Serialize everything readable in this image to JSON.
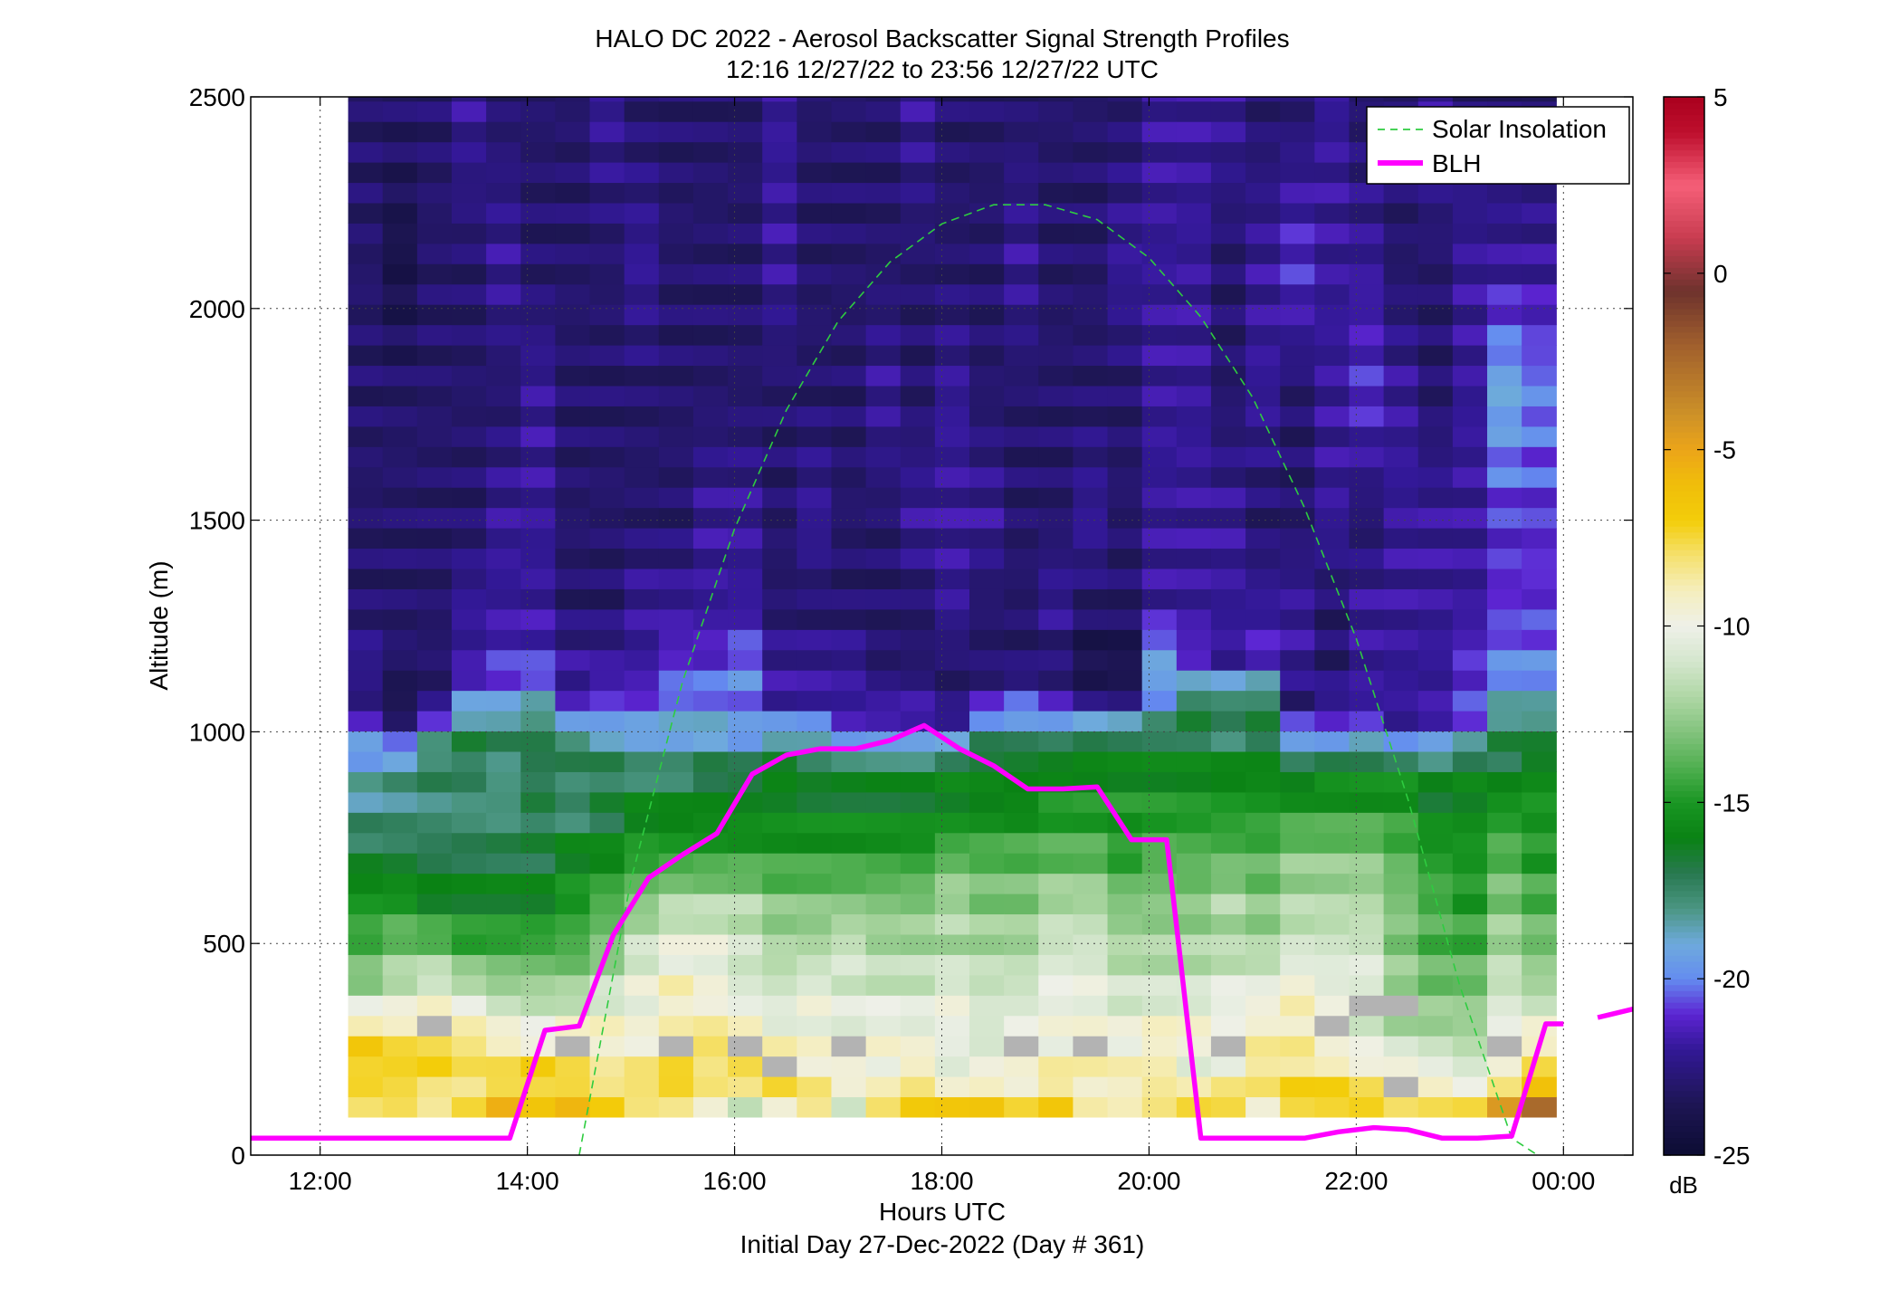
{
  "chart_data": {
    "type": "heatmap",
    "title": "HALO DC 2022 - Aerosol Backscatter Signal Strength Profiles",
    "subtitle": "12:16 12/27/22 to 23:56 12/27/22  UTC",
    "xlabel": "Hours UTC",
    "xlabel2": "Initial Day 27-Dec-2022 (Day # 361)",
    "ylabel": "Altitude (m)",
    "xlim": [
      11.33,
      24.67
    ],
    "ylim": [
      0,
      2500
    ],
    "x_ticks": [
      {
        "value": 12,
        "label": "12:00"
      },
      {
        "value": 14,
        "label": "14:00"
      },
      {
        "value": 16,
        "label": "16:00"
      },
      {
        "value": 18,
        "label": "18:00"
      },
      {
        "value": 20,
        "label": "20:00"
      },
      {
        "value": 22,
        "label": "22:00"
      },
      {
        "value": 24,
        "label": "00:00"
      }
    ],
    "y_ticks": [
      {
        "value": 0,
        "label": "0"
      },
      {
        "value": 500,
        "label": "500"
      },
      {
        "value": 1000,
        "label": "1000"
      },
      {
        "value": 1500,
        "label": "1500"
      },
      {
        "value": 2000,
        "label": "2000"
      },
      {
        "value": 2500,
        "label": "2500"
      }
    ],
    "grid": true,
    "heatmap": {
      "time_start": 12.27,
      "time_end": 23.93,
      "alt_bottom": 90,
      "alt_top": 2500,
      "n_time_bins": 35,
      "bin_height_m": 48,
      "anchor_rows": [
        {
          "alt": 120,
          "vals": [
            -8,
            -8,
            -9,
            -8,
            -6,
            -7,
            -6,
            -7,
            -8,
            -8,
            -9,
            -11,
            -9,
            -8,
            -11,
            -8,
            -7,
            -7,
            -7,
            -8,
            -7,
            -9,
            -9,
            -8,
            -7,
            -7,
            -9,
            -7,
            -7,
            -7,
            -8,
            -8,
            -8,
            -5,
            -3
          ]
        },
        {
          "alt": 200,
          "vals": [
            -7,
            -7,
            -7,
            -8,
            -8,
            -7,
            -8,
            -9,
            -8,
            -7,
            -8,
            -7,
            -7,
            -9,
            -9,
            -10,
            -9,
            -11,
            -10,
            -10,
            -9,
            -9,
            -9,
            -9,
            -11,
            -10,
            -8,
            -8,
            -8,
            -9,
            -9,
            -10,
            -11,
            -10,
            -8
          ]
        },
        {
          "alt": 280,
          "vals": [
            -7,
            -8,
            -8,
            -8,
            -9,
            -10,
            -9,
            -9,
            -10,
            -9,
            -8,
            -8,
            -10,
            -10,
            -10,
            -9.5,
            -10,
            -10,
            -11,
            -10,
            -10,
            -10,
            -10,
            -9,
            -9,
            -10,
            -9,
            -9,
            -11,
            -11,
            -12,
            -12,
            -12,
            -10,
            -9
          ]
        },
        {
          "alt": 380,
          "vals": [
            -12,
            -11,
            -10,
            -11,
            -12,
            -12,
            -12,
            -11,
            -10,
            -9,
            -10,
            -11,
            -11,
            -10,
            -11,
            -11,
            -11,
            -10,
            -11,
            -11,
            -10,
            -10,
            -11,
            -11,
            -11,
            -10,
            -10,
            -9,
            -10,
            -10,
            -12,
            -13,
            -13,
            -11,
            -12
          ]
        },
        {
          "alt": 480,
          "vals": [
            -14,
            -13,
            -13,
            -14,
            -14,
            -14,
            -14,
            -13,
            -11,
            -10,
            -10,
            -11,
            -12,
            -12,
            -11,
            -12,
            -12,
            -12,
            -12,
            -12,
            -11,
            -11,
            -12,
            -12,
            -12,
            -12,
            -12,
            -11,
            -11,
            -11,
            -13,
            -14,
            -14,
            -12,
            -13
          ]
        },
        {
          "alt": 600,
          "vals": [
            -15,
            -15,
            -16,
            -16,
            -16,
            -16,
            -15,
            -14,
            -13,
            -12,
            -12,
            -12,
            -13,
            -13,
            -13,
            -13,
            -13,
            -12,
            -13,
            -13,
            -12,
            -12,
            -13,
            -13,
            -13,
            -12,
            -13,
            -12,
            -12,
            -12,
            -13,
            -14,
            -15,
            -13,
            -14
          ]
        },
        {
          "alt": 720,
          "vals": [
            -17,
            -17,
            -17,
            -17,
            -17,
            -17,
            -16,
            -16,
            -15,
            -15,
            -15,
            -15,
            -15,
            -15,
            -15,
            -15,
            -15,
            -14,
            -14,
            -14,
            -14,
            -14,
            -15,
            -14,
            -14,
            -14,
            -14,
            -13,
            -13,
            -13,
            -14,
            -15,
            -15,
            -14,
            -15
          ]
        },
        {
          "alt": 820,
          "vals": [
            -18,
            -18,
            -18,
            -18,
            -18,
            -17,
            -18,
            -17,
            -16,
            -16,
            -16,
            -16,
            -16,
            -16,
            -16,
            -16,
            -16,
            -16,
            -16,
            -16,
            -15,
            -15,
            -15,
            -15,
            -15,
            -15,
            -15,
            -15,
            -15,
            -15,
            -15,
            -16,
            -16,
            -15,
            -15
          ]
        },
        {
          "alt": 920,
          "vals": [
            -19,
            -18,
            -17,
            -17,
            -18,
            -17,
            -17,
            -17,
            -18,
            -18,
            -17,
            -17,
            -16,
            -17,
            -17,
            -17,
            -17,
            -16,
            -16,
            -16,
            -16,
            -16,
            -16,
            -16,
            -16,
            -16,
            -16,
            -17,
            -16,
            -16,
            -16,
            -17,
            -16,
            -17,
            -16
          ]
        },
        {
          "alt": 1000,
          "vals": [
            -20,
            -22,
            -19,
            -17,
            -17,
            -17,
            -18,
            -19,
            -19,
            -19,
            -19,
            -20,
            -19,
            -19,
            -21,
            -21,
            -21,
            -21,
            -18,
            -18,
            -18,
            -17,
            -17,
            -17,
            -17,
            -18,
            -17,
            -20,
            -21,
            -20,
            -22,
            -21,
            -20,
            -17,
            -17
          ]
        },
        {
          "alt": 1080,
          "vals": [
            -23,
            -24,
            -23,
            -20,
            -20,
            -19,
            -22,
            -21,
            -21,
            -20,
            -20,
            -20,
            -22,
            -22,
            -22,
            -22,
            -22,
            -23,
            -22,
            -21,
            -22,
            -23,
            -23,
            -20,
            -17,
            -17,
            -17,
            -23,
            -22,
            -22,
            -22,
            -22,
            -21,
            -19,
            -19
          ]
        },
        {
          "alt": 1160,
          "vals": [
            -22,
            -23,
            -23,
            -22,
            -21,
            -21,
            -22,
            -22,
            -22,
            -21,
            -21,
            -20,
            -22,
            -22,
            -22,
            -23,
            -23,
            -23,
            -23,
            -23,
            -23,
            -24,
            -24,
            -19,
            -21,
            -22,
            -21,
            -22,
            -23,
            -22,
            -22,
            -22,
            -21,
            -20,
            -20
          ]
        },
        {
          "alt": 1300,
          "vals": [
            -23,
            -23,
            -23,
            -22,
            -22,
            -22,
            -23,
            -23,
            -22,
            -22,
            -22,
            -22,
            -23,
            -23,
            -23,
            -23,
            -23,
            -22,
            -23,
            -23,
            -22,
            -23,
            -23,
            -22,
            -22,
            -22,
            -22,
            -22,
            -23,
            -22,
            -22,
            -22,
            -22,
            -21,
            -21
          ]
        },
        {
          "alt": 1500,
          "vals": [
            -23,
            -23,
            -23,
            -23,
            -22,
            -22,
            -23,
            -23,
            -23,
            -23,
            -22,
            -22,
            -23,
            -22,
            -23,
            -23,
            -22,
            -22,
            -22,
            -23,
            -23,
            -22,
            -23,
            -22,
            -22,
            -22,
            -23,
            -23,
            -22,
            -23,
            -22,
            -22,
            -22,
            -21,
            -21
          ]
        },
        {
          "alt": 1800,
          "vals": [
            -23,
            -23,
            -23,
            -23,
            -23,
            -22,
            -23,
            -23,
            -23,
            -23,
            -23,
            -23,
            -23,
            -23,
            -23,
            -22,
            -23,
            -22,
            -23,
            -23,
            -23,
            -23,
            -23,
            -22,
            -22,
            -23,
            -22,
            -23,
            -22,
            -21,
            -22,
            -23,
            -22,
            -19,
            -20
          ]
        },
        {
          "alt": 2100,
          "vals": [
            -23,
            -24,
            -23,
            -23,
            -22,
            -23,
            -23,
            -23,
            -22,
            -23,
            -23,
            -23,
            -22,
            -23,
            -23,
            -23,
            -23,
            -23,
            -23,
            -22,
            -23,
            -23,
            -22,
            -22,
            -22,
            -23,
            -22,
            -21,
            -22,
            -22,
            -23,
            -23,
            -22,
            -22,
            -22
          ]
        },
        {
          "alt": 2480,
          "vals": [
            -23,
            -23,
            -23,
            -22,
            -23,
            -23,
            -23,
            -22,
            -23,
            -23,
            -23,
            -23,
            -22,
            -23,
            -23,
            -23,
            -22,
            -23,
            -23,
            -23,
            -23,
            -23,
            -23,
            -22,
            -22,
            -22,
            -23,
            -23,
            -22,
            -23,
            -23,
            -22,
            -23,
            -23,
            -23
          ]
        }
      ],
      "special_cells": [
        {
          "time_index": 2,
          "alt": 320,
          "value": "gray"
        },
        {
          "time_index": 6,
          "alt": 240,
          "value": "gray"
        },
        {
          "time_index": 9,
          "alt": 240,
          "value": "gray"
        },
        {
          "time_index": 11,
          "alt": 240,
          "value": "gray"
        },
        {
          "time_index": 12,
          "alt": 200,
          "value": "gray"
        },
        {
          "time_index": 14,
          "alt": 240,
          "value": "gray"
        },
        {
          "time_index": 19,
          "alt": 240,
          "value": "gray"
        },
        {
          "time_index": 21,
          "alt": 240,
          "value": "gray"
        },
        {
          "time_index": 25,
          "alt": 240,
          "value": "gray"
        },
        {
          "time_index": 28,
          "alt": 320,
          "value": "gray"
        },
        {
          "time_index": 29,
          "alt": 360,
          "value": "gray"
        },
        {
          "time_index": 30,
          "alt": 360,
          "value": "gray"
        },
        {
          "time_index": 30,
          "alt": 160,
          "value": "gray"
        },
        {
          "time_index": 33,
          "alt": 280,
          "value": "gray"
        }
      ]
    },
    "colorbar": {
      "min": -25,
      "max": 5,
      "ticks": [
        {
          "value": 5,
          "label": "5"
        },
        {
          "value": 0,
          "label": "0"
        },
        {
          "value": -5,
          "label": "-5"
        },
        {
          "value": -10,
          "label": "-10"
        },
        {
          "value": -15,
          "label": "-15"
        },
        {
          "value": -20,
          "label": "-20"
        },
        {
          "value": -25,
          "label": "-25"
        }
      ],
      "unit": "dB"
    },
    "series": [
      {
        "name": "Solar Insolation",
        "style": "dashed",
        "color": "#2ecc40",
        "x": [
          14.5,
          15.0,
          15.5,
          16.0,
          16.5,
          17.0,
          17.5,
          18.0,
          18.5,
          19.0,
          19.5,
          20.0,
          20.5,
          21.0,
          21.5,
          22.0,
          22.5,
          23.0,
          23.5,
          23.75
        ],
        "y": [
          0,
          650,
          1120,
          1480,
          1760,
          1970,
          2110,
          2200,
          2245,
          2245,
          2210,
          2120,
          1980,
          1790,
          1530,
          1220,
          840,
          400,
          40,
          0
        ]
      },
      {
        "name": "BLH",
        "style": "solid",
        "color": "#ff00ff",
        "segments": [
          {
            "x": [
              11.33,
              12.5,
              13.5,
              13.83,
              14.17,
              14.5,
              14.83,
              15.17,
              15.5,
              15.83,
              16.17,
              16.5,
              16.83,
              17.17,
              17.5,
              17.83,
              18.17,
              18.5,
              18.83,
              19.17,
              19.5,
              19.83,
              20.17,
              20.5,
              20.83,
              21.17,
              21.5,
              21.83,
              22.17,
              22.5,
              22.83,
              23.17,
              23.5,
              23.83,
              24.0
            ],
            "y": [
              40,
              40,
              40,
              40,
              295,
              305,
              520,
              655,
              710,
              760,
              900,
              945,
              960,
              960,
              980,
              1015,
              960,
              920,
              865,
              865,
              870,
              745,
              745,
              40,
              40,
              40,
              40,
              55,
              65,
              60,
              40,
              40,
              45,
              310,
              310
            ]
          },
          {
            "x": [
              24.33,
              24.67
            ],
            "y": [
              325,
              345
            ]
          }
        ]
      }
    ],
    "legend": {
      "placement": "top-right",
      "entries": [
        "Solar Insolation",
        "BLH"
      ]
    }
  }
}
